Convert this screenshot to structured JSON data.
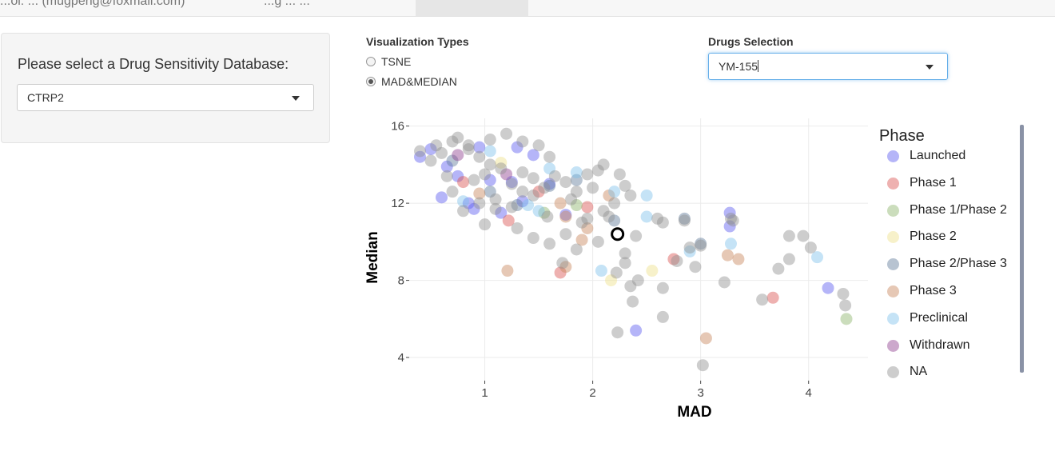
{
  "tabs": [
    {
      "label": "...ol: ... (mugpeng@foxmail.com)"
    },
    {
      "label": "...g ... ..."
    },
    {
      "label": ""
    }
  ],
  "sidebar": {
    "db_label": "Please select a Drug Sensitivity Database:",
    "db_value": "CTRP2"
  },
  "viz": {
    "title": "Visualization Types",
    "options": [
      {
        "label": "TSNE",
        "selected": false
      },
      {
        "label": "MAD&MEDIAN",
        "selected": true
      }
    ]
  },
  "drugs": {
    "title": "Drugs Selection",
    "value": "YM-155"
  },
  "colors": {
    "Launched": "#5a5af0",
    "Phase 1": "#d9534f",
    "Phase 1/Phase 2": "#8bb36b",
    "Phase 2": "#eee08a",
    "Phase 2/Phase 3": "#5f7a99",
    "Phase 3": "#c7865c",
    "Preclinical": "#7ec0ec",
    "Withdrawn": "#8e3f8e",
    "NA": "#909090"
  },
  "chart_data": {
    "type": "scatter",
    "xlabel": "MAD",
    "ylabel": "Median",
    "xlim": [
      0.3,
      4.55
    ],
    "ylim": [
      2.8,
      16.4
    ],
    "xticks": [
      1,
      2,
      3,
      4
    ],
    "yticks": [
      4,
      8,
      12,
      16
    ],
    "grid": true,
    "legend": {
      "title": "Phase",
      "placement": "right"
    },
    "highlight": {
      "name": "YM-155",
      "x": 2.23,
      "y": 10.4
    },
    "series": [
      {
        "name": "Launched",
        "points": [
          [
            0.4,
            14.4
          ],
          [
            0.5,
            14.8
          ],
          [
            0.65,
            13.9
          ],
          [
            0.75,
            13.4
          ],
          [
            0.6,
            12.3
          ],
          [
            0.85,
            12.0
          ],
          [
            0.95,
            14.9
          ],
          [
            1.05,
            13.2
          ],
          [
            1.15,
            11.5
          ],
          [
            1.25,
            13.1
          ],
          [
            1.3,
            14.9
          ],
          [
            1.45,
            14.5
          ],
          [
            1.35,
            12.1
          ],
          [
            1.6,
            13.0
          ],
          [
            1.75,
            11.4
          ],
          [
            0.9,
            11.7
          ],
          [
            3.27,
            10.8
          ],
          [
            3.27,
            11.5
          ],
          [
            4.18,
            7.6
          ],
          [
            2.4,
            5.4
          ]
        ]
      },
      {
        "name": "Phase 1",
        "points": [
          [
            1.22,
            11.1
          ],
          [
            1.7,
            8.4
          ],
          [
            1.95,
            11.8
          ],
          [
            2.75,
            9.1
          ],
          [
            3.67,
            7.1
          ],
          [
            0.8,
            13.1
          ],
          [
            1.5,
            12.6
          ]
        ]
      },
      {
        "name": "Phase 1/Phase 2",
        "points": [
          [
            4.35,
            6.0
          ],
          [
            1.85,
            11.9
          ],
          [
            1.55,
            11.5
          ]
        ]
      },
      {
        "name": "Phase 2",
        "points": [
          [
            2.17,
            8.0
          ],
          [
            2.55,
            8.5
          ],
          [
            1.15,
            14.1
          ]
        ]
      },
      {
        "name": "Phase 2/Phase 3",
        "points": [
          [
            1.05,
            12.6
          ],
          [
            1.6,
            12.9
          ],
          [
            0.7,
            14.2
          ],
          [
            1.3,
            11.9
          ],
          [
            2.85,
            11.2
          ],
          [
            3.0,
            9.9
          ],
          [
            2.2,
            11.1
          ],
          [
            1.85,
            13.2
          ]
        ]
      },
      {
        "name": "Phase 3",
        "points": [
          [
            1.21,
            8.5
          ],
          [
            1.75,
            8.7
          ],
          [
            3.05,
            5.0
          ],
          [
            3.25,
            9.3
          ],
          [
            3.35,
            9.1
          ],
          [
            1.95,
            10.7
          ],
          [
            1.9,
            10.1
          ],
          [
            0.95,
            12.5
          ],
          [
            1.7,
            12.0
          ],
          [
            1.75,
            11.3
          ],
          [
            2.15,
            12.4
          ]
        ]
      },
      {
        "name": "Preclinical",
        "points": [
          [
            2.08,
            8.5
          ],
          [
            2.5,
            11.3
          ],
          [
            2.5,
            12.4
          ],
          [
            3.28,
            9.9
          ],
          [
            4.08,
            9.2
          ],
          [
            1.6,
            13.8
          ],
          [
            1.05,
            14.7
          ],
          [
            0.8,
            12.1
          ],
          [
            1.5,
            11.6
          ],
          [
            1.85,
            13.6
          ],
          [
            1.4,
            11.9
          ],
          [
            2.2,
            12.6
          ],
          [
            2.9,
            9.5
          ]
        ]
      },
      {
        "name": "Withdrawn",
        "points": [
          [
            0.75,
            14.5
          ],
          [
            1.2,
            13.5
          ]
        ]
      },
      {
        "name": "NA",
        "points": [
          [
            0.4,
            14.7
          ],
          [
            0.55,
            15.0
          ],
          [
            0.7,
            15.2
          ],
          [
            0.6,
            14.6
          ],
          [
            0.5,
            14.2
          ],
          [
            0.85,
            14.8
          ],
          [
            0.95,
            14.4
          ],
          [
            1.05,
            14.0
          ],
          [
            1.0,
            13.5
          ],
          [
            0.9,
            13.2
          ],
          [
            1.15,
            13.8
          ],
          [
            1.25,
            13.0
          ],
          [
            1.35,
            13.6
          ],
          [
            1.45,
            13.3
          ],
          [
            1.55,
            12.8
          ],
          [
            1.65,
            13.4
          ],
          [
            1.75,
            13.1
          ],
          [
            1.85,
            12.6
          ],
          [
            1.95,
            13.5
          ],
          [
            2.05,
            13.7
          ],
          [
            1.2,
            15.6
          ],
          [
            1.35,
            15.2
          ],
          [
            0.75,
            15.4
          ],
          [
            1.1,
            12.2
          ],
          [
            0.8,
            11.6
          ],
          [
            0.7,
            12.6
          ],
          [
            1.0,
            10.9
          ],
          [
            1.3,
            10.7
          ],
          [
            1.45,
            10.2
          ],
          [
            1.6,
            9.9
          ],
          [
            1.75,
            10.4
          ],
          [
            1.85,
            9.6
          ],
          [
            1.8,
            12.2
          ],
          [
            1.95,
            11.2
          ],
          [
            2.1,
            11.6
          ],
          [
            2.2,
            12.0
          ],
          [
            2.3,
            12.9
          ],
          [
            2.35,
            12.4
          ],
          [
            2.25,
            13.5
          ],
          [
            2.15,
            11.3
          ],
          [
            2.05,
            10.0
          ],
          [
            2.3,
            9.4
          ],
          [
            2.3,
            8.9
          ],
          [
            2.22,
            8.4
          ],
          [
            2.35,
            7.7
          ],
          [
            2.42,
            8.0
          ],
          [
            2.37,
            6.9
          ],
          [
            2.23,
            5.3
          ],
          [
            2.4,
            10.3
          ],
          [
            2.6,
            11.2
          ],
          [
            2.65,
            11.0
          ],
          [
            2.65,
            7.6
          ],
          [
            2.65,
            6.1
          ],
          [
            2.78,
            9.0
          ],
          [
            2.85,
            11.1
          ],
          [
            2.9,
            9.7
          ],
          [
            2.95,
            8.7
          ],
          [
            3.0,
            9.8
          ],
          [
            3.02,
            3.6
          ],
          [
            3.22,
            7.9
          ],
          [
            3.28,
            11.2
          ],
          [
            3.3,
            11.1
          ],
          [
            3.57,
            7.0
          ],
          [
            3.72,
            8.6
          ],
          [
            3.82,
            9.1
          ],
          [
            3.82,
            10.3
          ],
          [
            3.95,
            10.3
          ],
          [
            4.02,
            9.7
          ],
          [
            4.32,
            7.3
          ],
          [
            4.34,
            6.7
          ],
          [
            1.72,
            8.9
          ],
          [
            1.58,
            11.3
          ],
          [
            1.25,
            11.8
          ],
          [
            1.45,
            12.4
          ],
          [
            1.9,
            11.0
          ],
          [
            2.0,
            12.8
          ],
          [
            2.1,
            14.0
          ],
          [
            1.6,
            14.4
          ],
          [
            1.5,
            15.0
          ],
          [
            0.95,
            12.0
          ],
          [
            1.1,
            11.7
          ],
          [
            0.65,
            13.4
          ],
          [
            1.35,
            12.6
          ],
          [
            1.05,
            15.3
          ],
          [
            0.85,
            15.0
          ]
        ]
      }
    ]
  }
}
